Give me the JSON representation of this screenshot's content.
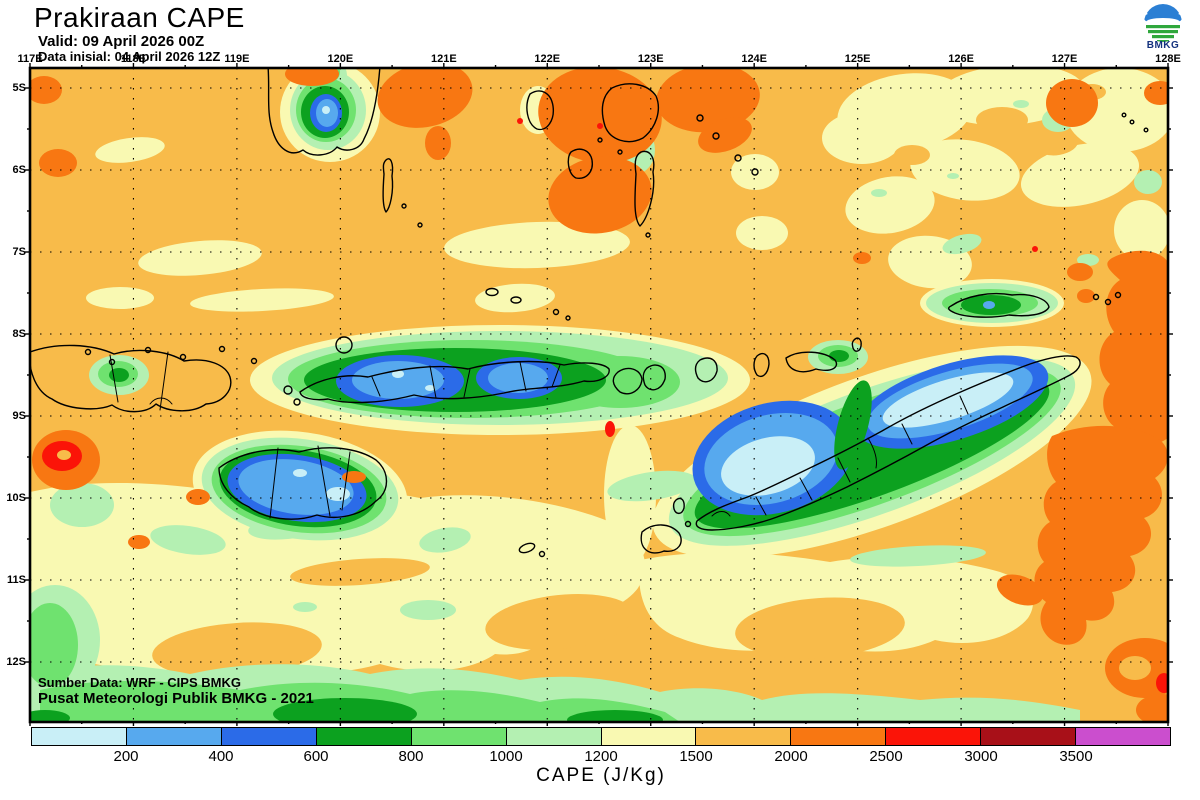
{
  "header": {
    "title": "Prakiraan CAPE",
    "valid_label": "Valid: 09 April 2026 00Z",
    "init_label": "Data inisial: 04 April 2026 12Z",
    "logo_text": "BMKG"
  },
  "map": {
    "lon_ticks": [
      "117E",
      "118E",
      "119E",
      "120E",
      "121E",
      "122E",
      "123E",
      "124E",
      "125E",
      "126E",
      "127E",
      "128E"
    ],
    "lat_ticks": [
      "5S",
      "6S",
      "7S",
      "8S",
      "9S",
      "10S",
      "11S",
      "12S"
    ],
    "source_line1": "Sumber Data: WRF - CIPS BMKG",
    "source_line2": "Pusat Meteorologi Publik BMKG - 2021"
  },
  "colorbar": {
    "caption": "CAPE (J/Kg)",
    "ticks": [
      "200",
      "400",
      "600",
      "800",
      "1000",
      "1200",
      "1500",
      "2000",
      "2500",
      "3000",
      "3500"
    ],
    "segments": [
      {
        "color": "#C9EFF7",
        "range": "0-200"
      },
      {
        "color": "#57A9EE",
        "range": "200-400"
      },
      {
        "color": "#2B6BE8",
        "range": "400-600"
      },
      {
        "color": "#0CA11F",
        "range": "600-800"
      },
      {
        "color": "#6FE26F",
        "range": "800-1000"
      },
      {
        "color": "#B4F0B2",
        "range": "1000-1200"
      },
      {
        "color": "#F9F9B2",
        "range": "1200-1500"
      },
      {
        "color": "#F8BB4A",
        "range": "1500-2000"
      },
      {
        "color": "#F87712",
        "range": "2000-2500"
      },
      {
        "color": "#FB1408",
        "range": "2500-3000"
      },
      {
        "color": "#A81018",
        "range": "3000-3500"
      },
      {
        "color": "#CB4ECE",
        "range": ">3500"
      }
    ]
  },
  "chart_data": {
    "type": "heatmap",
    "variable": "CAPE",
    "units": "J/Kg",
    "title": "Prakiraan CAPE",
    "levels": [
      200,
      400,
      600,
      800,
      1000,
      1200,
      1500,
      2000,
      2500,
      3000,
      3500
    ],
    "palette": [
      "#C9EFF7",
      "#57A9EE",
      "#2B6BE8",
      "#0CA11F",
      "#6FE26F",
      "#B4F0B2",
      "#F9F9B2",
      "#F8BB4A",
      "#F87712",
      "#FB1408",
      "#A81018",
      "#CB4ECE"
    ],
    "extent": {
      "lon": [
        "117E",
        "128E"
      ],
      "lat": [
        "5S",
        "12S"
      ]
    },
    "notable_regions": [
      {
        "area": "Sumbawa-Flores island chain (119.8-123E, 8.3-9S)",
        "value_range": "200-600"
      },
      {
        "area": "Sumba island (119-120.5E, 9.4-10.2S)",
        "value_range": "200-600 with <200 spots"
      },
      {
        "area": "Timor island (123.5-127E, 8.5-10.4S)",
        "value_range": "0-400 (large <200 core)"
      },
      {
        "area": "SW Sulawesi tip (119.8-120.4E, ~5S)",
        "value_range": "200-600"
      },
      {
        "area": "Wetar island (~126E, 7.8S)",
        "value_range": "400-800"
      },
      {
        "area": "open-sea background",
        "value_range": "1500-2000"
      },
      {
        "area": "maxima north (121-123.3E, 4.7-6.5S) and east (127-128E, 7.5-12S)",
        "value_range": "2000-2500"
      },
      {
        "area": "southern edge band (12-12.7S)",
        "value_range": "600-1200"
      }
    ]
  }
}
